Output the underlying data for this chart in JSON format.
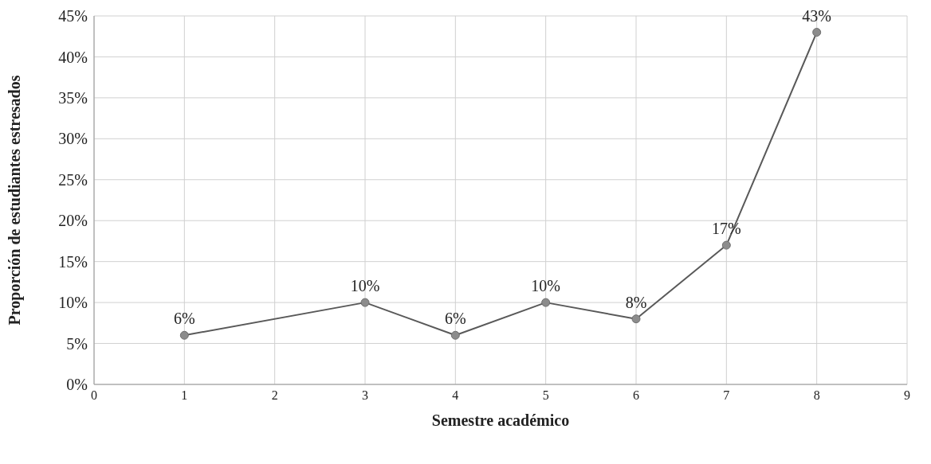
{
  "chart_data": {
    "type": "line",
    "xlabel": "Semestre académico",
    "ylabel": "Proporción de estudiantes estresados",
    "x": [
      1,
      3,
      4,
      5,
      6,
      7,
      8
    ],
    "series": [
      {
        "color": "#595959",
        "values": [
          6,
          10,
          6,
          10,
          8,
          17,
          43
        ]
      }
    ],
    "value_labels": [
      "6%",
      "10%",
      "6%",
      "10%",
      "8%",
      "17%",
      "43%"
    ],
    "xlim": [
      0,
      9
    ],
    "xticks": [
      0,
      1,
      2,
      3,
      4,
      5,
      6,
      7,
      8,
      9
    ],
    "ylim": [
      0,
      45
    ],
    "yticks": [
      {
        "value": 0,
        "label": "0%"
      },
      {
        "value": 5,
        "label": "5%"
      },
      {
        "value": 10,
        "label": "10%"
      },
      {
        "value": 15,
        "label": "15%"
      },
      {
        "value": 20,
        "label": "20%"
      },
      {
        "value": 25,
        "label": "25%"
      },
      {
        "value": 30,
        "label": "30%"
      },
      {
        "value": 35,
        "label": "35%"
      },
      {
        "value": 40,
        "label": "40%"
      },
      {
        "value": 45,
        "label": "45%"
      }
    ],
    "grid": true,
    "marker": "circle",
    "line_style": "solid",
    "legend": false
  }
}
